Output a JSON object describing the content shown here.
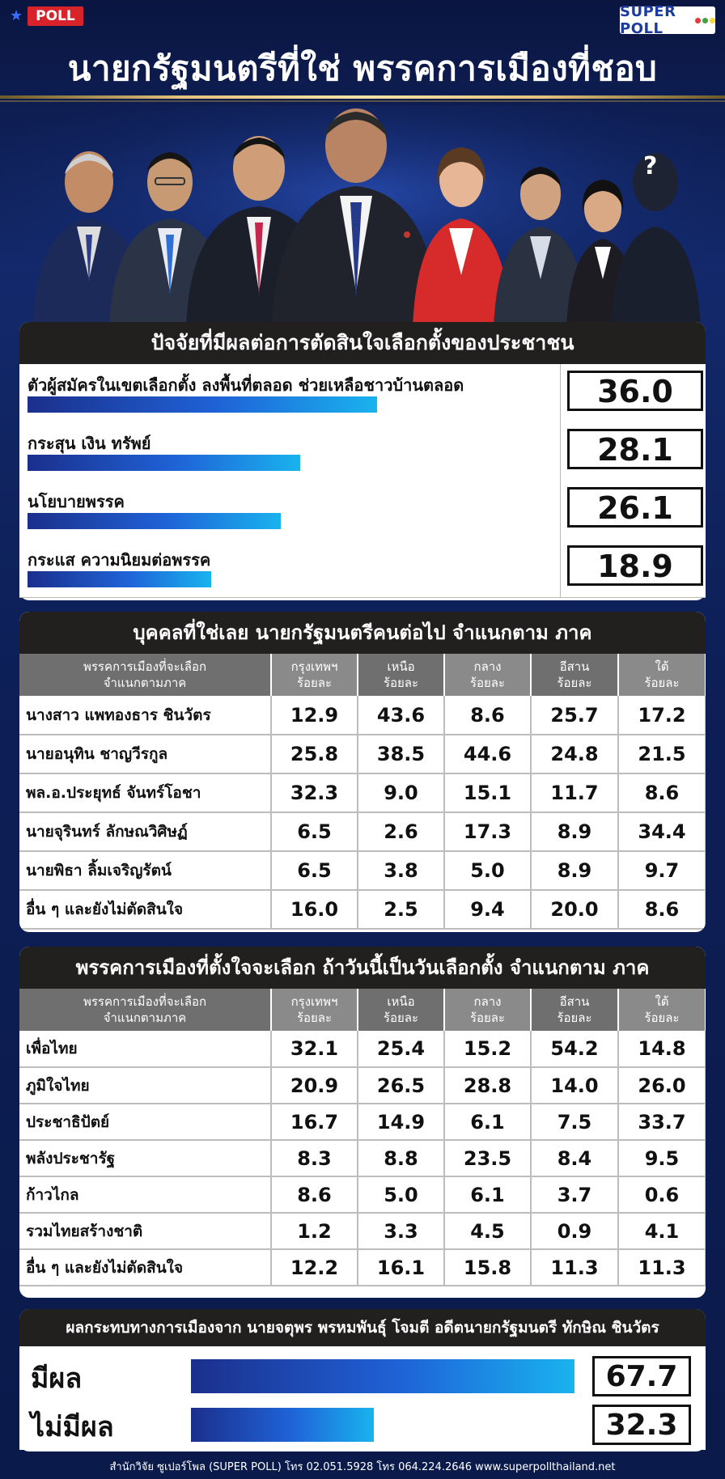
{
  "header": {
    "poll_tag": "POLL",
    "logo_text": "SUPER POLL",
    "title": "นายกรัฐมนตรีที่ใช่  พรรคการเมืองที่ชอบ",
    "mystery_mark": "?"
  },
  "factors": {
    "title": "ปัจจัยที่มีผลต่อการตัดสินใจเลือกตั้งของประชาชน",
    "items": [
      {
        "label": "ตัวผู้สมัครในเขตเลือกตั้ง ลงพื้นที่ตลอด ช่วยเหลือชาวบ้านตลอด",
        "value": "36.0"
      },
      {
        "label": "กระสุน เงิน ทรัพย์",
        "value": "28.1"
      },
      {
        "label": "นโยบายพรรค",
        "value": "26.1"
      },
      {
        "label": "กระแส ความนิยมต่อพรรค",
        "value": "18.9"
      }
    ]
  },
  "pm_table": {
    "title": "บุคคลที่ใช่เลย นายกรัฐมนตรีคนต่อไป จำแนกตาม ภาค",
    "head_label_1": "พรรคการเมืองที่จะเลือก",
    "head_label_2": "จำแนกตามภาค",
    "regions": [
      {
        "name": "กรุงเทพฯ",
        "unit": "ร้อยละ"
      },
      {
        "name": "เหนือ",
        "unit": "ร้อยละ"
      },
      {
        "name": "กลาง",
        "unit": "ร้อยละ"
      },
      {
        "name": "อีสาน",
        "unit": "ร้อยละ"
      },
      {
        "name": "ใต้",
        "unit": "ร้อยละ"
      }
    ],
    "rows": [
      {
        "label": "นางสาว แพทองธาร  ชินวัตร",
        "values": [
          "12.9",
          "43.6",
          "8.6",
          "25.7",
          "17.2"
        ]
      },
      {
        "label": "นายอนุทิน ชาญวีรกูล",
        "values": [
          "25.8",
          "38.5",
          "44.6",
          "24.8",
          "21.5"
        ]
      },
      {
        "label": "พล.อ.ประยุทธ์  จันทร์โอชา",
        "values": [
          "32.3",
          "9.0",
          "15.1",
          "11.7",
          "8.6"
        ]
      },
      {
        "label": "นายจุรินทร์  ลักษณวิศิษฏ์",
        "values": [
          "6.5",
          "2.6",
          "17.3",
          "8.9",
          "34.4"
        ]
      },
      {
        "label": "นายพิธา  ลิ้มเจริญรัตน์",
        "values": [
          "6.5",
          "3.8",
          "5.0",
          "8.9",
          "9.7"
        ]
      },
      {
        "label": "อื่น ๆ และยังไม่ตัดสินใจ",
        "values": [
          "16.0",
          "2.5",
          "9.4",
          "20.0",
          "8.6"
        ]
      }
    ]
  },
  "party_table": {
    "title": "พรรคการเมืองที่ตั้งใจจะเลือก ถ้าวันนี้เป็นวันเลือกตั้ง จำแนกตาม ภาค",
    "head_label_1": "พรรคการเมืองที่จะเลือก",
    "head_label_2": "จำแนกตามภาค",
    "regions": [
      {
        "name": "กรุงเทพฯ",
        "unit": "ร้อยละ"
      },
      {
        "name": "เหนือ",
        "unit": "ร้อยละ"
      },
      {
        "name": "กลาง",
        "unit": "ร้อยละ"
      },
      {
        "name": "อีสาน",
        "unit": "ร้อยละ"
      },
      {
        "name": "ใต้",
        "unit": "ร้อยละ"
      }
    ],
    "rows": [
      {
        "label": "เพื่อไทย",
        "values": [
          "32.1",
          "25.4",
          "15.2",
          "54.2",
          "14.8"
        ]
      },
      {
        "label": "ภูมิใจไทย",
        "values": [
          "20.9",
          "26.5",
          "28.8",
          "14.0",
          "26.0"
        ]
      },
      {
        "label": "ประชาธิปัตย์",
        "values": [
          "16.7",
          "14.9",
          "6.1",
          "7.5",
          "33.7"
        ]
      },
      {
        "label": "พลังประชารัฐ",
        "values": [
          "8.3",
          "8.8",
          "23.5",
          "8.4",
          "9.5"
        ]
      },
      {
        "label": "ก้าวไกล",
        "values": [
          "8.6",
          "5.0",
          "6.1",
          "3.7",
          "0.6"
        ]
      },
      {
        "label": "รวมไทยสร้างชาติ",
        "values": [
          "1.2",
          "3.3",
          "4.5",
          "0.9",
          "4.1"
        ]
      },
      {
        "label": "อื่น ๆ และยังไม่ตัดสินใจ",
        "values": [
          "12.2",
          "16.1",
          "15.8",
          "11.3",
          "11.3"
        ]
      }
    ]
  },
  "impact": {
    "title": "ผลกระทบทางการเมืองจาก นายจตุพร พรหมพันธุ์ โจมตี อดีตนายกรัฐมนตรี ทักษิณ  ชินวัตร",
    "items": [
      {
        "label": "มีผล",
        "value": "67.7"
      },
      {
        "label": "ไม่มีผล",
        "value": "32.3"
      }
    ]
  },
  "footer": "สำนักวิจัย ซูเปอร์โพล (SUPER POLL) โทร 02.051.5928 โทร 064.224.2646    www.superpollthailand.net",
  "colors": {
    "accent": "#d8232a",
    "bar_start": "#1b2f8c",
    "bar_end": "#19b3ee",
    "header_dark": "#221f1f"
  },
  "chart_data": [
    {
      "type": "bar",
      "title": "ปัจจัยที่มีผลต่อการตัดสินใจเลือกตั้งของประชาชน",
      "categories": [
        "ตัวผู้สมัครในเขตเลือกตั้ง ลงพื้นที่ตลอด ช่วยเหลือชาวบ้านตลอด",
        "กระสุน เงิน ทรัพย์",
        "นโยบายพรรค",
        "กระแส ความนิยมต่อพรรค"
      ],
      "values": [
        36.0,
        28.1,
        26.1,
        18.9
      ]
    },
    {
      "type": "table",
      "title": "บุคคลที่ใช่เลย นายกรัฐมนตรีคนต่อไป จำแนกตาม ภาค",
      "columns": [
        "กรุงเทพฯ",
        "เหนือ",
        "กลาง",
        "อีสาน",
        "ใต้"
      ],
      "rows": [
        "นางสาว แพทองธาร  ชินวัตร",
        "นายอนุทิน ชาญวีรกูล",
        "พล.อ.ประยุทธ์  จันทร์โอชา",
        "นายจุรินทร์  ลักษณวิศิษฏ์",
        "นายพิธา  ลิ้มเจริญรัตน์",
        "อื่น ๆ และยังไม่ตัดสินใจ"
      ],
      "values": [
        [
          12.9,
          43.6,
          8.6,
          25.7,
          17.2
        ],
        [
          25.8,
          38.5,
          44.6,
          24.8,
          21.5
        ],
        [
          32.3,
          9.0,
          15.1,
          11.7,
          8.6
        ],
        [
          6.5,
          2.6,
          17.3,
          8.9,
          34.4
        ],
        [
          6.5,
          3.8,
          5.0,
          8.9,
          9.7
        ],
        [
          16.0,
          2.5,
          9.4,
          20.0,
          8.6
        ]
      ]
    },
    {
      "type": "table",
      "title": "พรรคการเมืองที่ตั้งใจจะเลือก ถ้าวันนี้เป็นวันเลือกตั้ง จำแนกตาม ภาค",
      "columns": [
        "กรุงเทพฯ",
        "เหนือ",
        "กลาง",
        "อีสาน",
        "ใต้"
      ],
      "rows": [
        "เพื่อไทย",
        "ภูมิใจไทย",
        "ประชาธิปัตย์",
        "พลังประชารัฐ",
        "ก้าวไกล",
        "รวมไทยสร้างชาติ",
        "อื่น ๆ และยังไม่ตัดสินใจ"
      ],
      "values": [
        [
          32.1,
          25.4,
          15.2,
          54.2,
          14.8
        ],
        [
          20.9,
          26.5,
          28.8,
          14.0,
          26.0
        ],
        [
          16.7,
          14.9,
          6.1,
          7.5,
          33.7
        ],
        [
          8.3,
          8.8,
          23.5,
          8.4,
          9.5
        ],
        [
          8.6,
          5.0,
          6.1,
          3.7,
          0.6
        ],
        [
          1.2,
          3.3,
          4.5,
          0.9,
          4.1
        ],
        [
          12.2,
          16.1,
          15.8,
          11.3,
          11.3
        ]
      ]
    },
    {
      "type": "bar",
      "title": "ผลกระทบทางการเมืองจาก นายจตุพร พรหมพันธุ์ โจมตี อดีตนายกรัฐมนตรี ทักษิณ  ชินวัตร",
      "categories": [
        "มีผล",
        "ไม่มีผล"
      ],
      "values": [
        67.7,
        32.3
      ]
    }
  ]
}
